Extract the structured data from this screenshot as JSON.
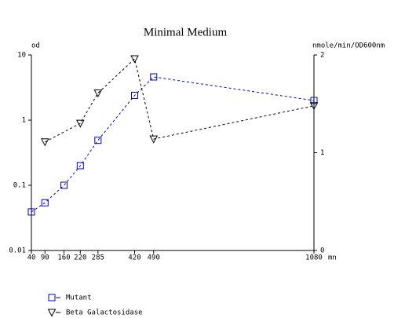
{
  "chart_data": {
    "type": "line",
    "title": "Minimal Medium",
    "x_label": "mn",
    "y_label": "od",
    "y2_label": "nmole/min/OD600nm",
    "xlim": [
      40,
      1080
    ],
    "xticks": [
      40,
      90,
      160,
      220,
      285,
      420,
      490,
      1080
    ],
    "ylim": [
      0.01,
      10
    ],
    "yticks": [
      0.01,
      0.1,
      1,
      10
    ],
    "ylog": true,
    "y2lim": [
      0,
      2
    ],
    "y2ticks": [
      0,
      1,
      2
    ],
    "series": [
      {
        "name": "Mutant",
        "color": "#0000cc",
        "marker": "square",
        "x": [
          40,
          90,
          160,
          220,
          285,
          420,
          490,
          1080
        ],
        "values": [
          0.039,
          0.054,
          0.1,
          0.2,
          0.49,
          2.4,
          4.6,
          2.0
        ]
      },
      {
        "name": "Beta Galactosidase",
        "color": "#000000",
        "marker": "triangle-down",
        "axis": "y2",
        "x": [
          90,
          220,
          285,
          420,
          490,
          1080
        ],
        "values": [
          1.11,
          1.3,
          1.61,
          1.96,
          1.14,
          1.48
        ]
      }
    ]
  }
}
